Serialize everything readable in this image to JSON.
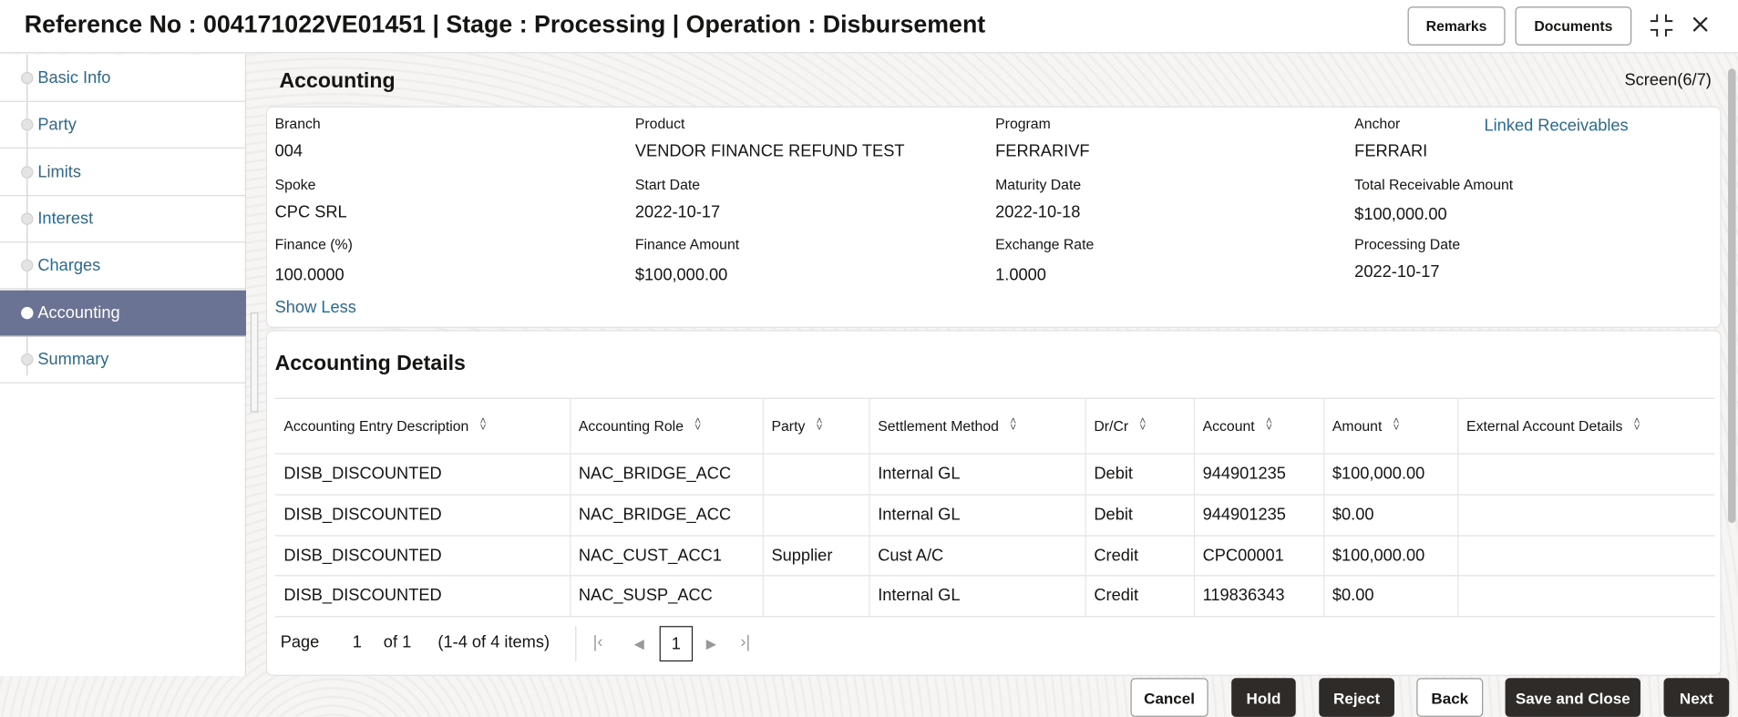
{
  "header": {
    "title": "Reference No : 004171022VE01451 | Stage : Processing | Operation : Disbursement",
    "remarks": "Remarks",
    "documents": "Documents"
  },
  "sidebar": {
    "items": [
      {
        "label": "Basic Info"
      },
      {
        "label": "Party"
      },
      {
        "label": "Limits"
      },
      {
        "label": "Interest"
      },
      {
        "label": "Charges"
      },
      {
        "label": "Accounting",
        "active": true
      },
      {
        "label": "Summary"
      }
    ]
  },
  "main": {
    "title": "Accounting",
    "screen": "Screen(6/7)",
    "fields": [
      {
        "label": "Branch",
        "value": "004"
      },
      {
        "label": "Product",
        "value": "VENDOR FINANCE REFUND TEST"
      },
      {
        "label": "Program",
        "value": "FERRARIVF"
      },
      {
        "label": "Anchor",
        "value": "FERRARI"
      },
      {
        "label": "Spoke",
        "value": "CPC SRL"
      },
      {
        "label": "Start Date",
        "value": "2022-10-17"
      },
      {
        "label": "Maturity Date",
        "value": "2022-10-18"
      },
      {
        "label": "Total Receivable Amount",
        "value": "$100,000.00"
      },
      {
        "label": "Finance (%)",
        "value": "100.0000"
      },
      {
        "label": "Finance Amount",
        "value": "$100,000.00"
      },
      {
        "label": "Exchange Rate",
        "value": "1.0000"
      },
      {
        "label": "Processing Date",
        "value": "2022-10-17"
      }
    ],
    "linked": "Linked Receivables",
    "show_less": "Show Less"
  },
  "details": {
    "title": "Accounting Details",
    "columns": [
      "Accounting Entry Description",
      "Accounting Role",
      "Party",
      "Settlement Method",
      "Dr/Cr",
      "Account",
      "Amount",
      "External Account Details"
    ],
    "rows": [
      [
        "DISB_DISCOUNTED",
        "NAC_BRIDGE_ACC",
        "",
        "Internal GL",
        "Debit",
        "944901235",
        "$100,000.00",
        ""
      ],
      [
        "DISB_DISCOUNTED",
        "NAC_BRIDGE_ACC",
        "",
        "Internal GL",
        "Debit",
        "944901235",
        "$0.00",
        ""
      ],
      [
        "DISB_DISCOUNTED",
        "NAC_CUST_ACC1",
        "Supplier",
        "Cust A/C",
        "Credit",
        "CPC00001",
        "$100,000.00",
        ""
      ],
      [
        "DISB_DISCOUNTED",
        "NAC_SUSP_ACC",
        "",
        "Internal GL",
        "Credit",
        "119836343",
        "$0.00",
        ""
      ]
    ],
    "pagination": {
      "page_label": "Page",
      "page": "1",
      "of": "of 1",
      "items": "(1-4 of 4 items)",
      "current": "1"
    }
  },
  "footer": {
    "cancel": "Cancel",
    "hold": "Hold",
    "reject": "Reject",
    "back": "Back",
    "save_close": "Save and Close",
    "next": "Next"
  },
  "colors": {
    "active_nav": "#6b7394",
    "link": "#2b6a8f",
    "dark_button": "#2e2b29"
  }
}
